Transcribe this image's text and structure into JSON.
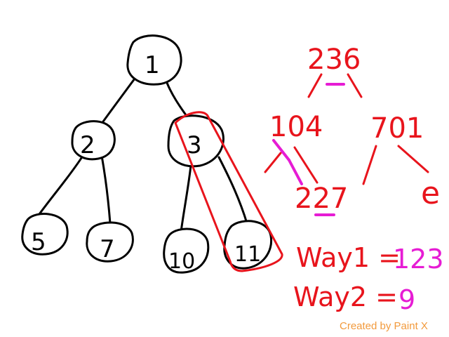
{
  "tree": {
    "nodes": [
      {
        "id": "n1",
        "label": "1"
      },
      {
        "id": "n2",
        "label": "2"
      },
      {
        "id": "n3",
        "label": "3"
      },
      {
        "id": "n5",
        "label": "5"
      },
      {
        "id": "n7",
        "label": "7"
      },
      {
        "id": "n10",
        "label": "10"
      },
      {
        "id": "n11",
        "label": "11"
      }
    ]
  },
  "annotations": {
    "top_number": "236",
    "left_number": "104",
    "right_number": "701",
    "bottom_number": "227",
    "side_fragment": "e",
    "way1_label": "Way1 =",
    "way1_value": "123",
    "way2_label": "Way2 =",
    "way2_value": "9"
  },
  "colors": {
    "ink": "#000000",
    "red": "#e8141c",
    "magenta": "#e61cd4",
    "watermark": "#f29a3c"
  },
  "watermark": "Created by Paint X"
}
